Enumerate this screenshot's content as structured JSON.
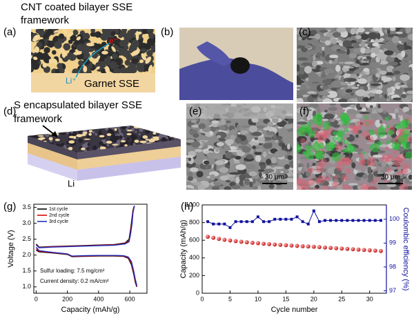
{
  "panel_labels": [
    "(a)",
    "(b)",
    "(c)",
    "(d)",
    "(e)",
    "(f)",
    "(g)",
    "(h)"
  ],
  "panel_a": {
    "title_lines": [
      "CNT coated bilayer SSE",
      "framework"
    ],
    "electron": "e⁻",
    "lithium_ion": "Li⁺",
    "layer": "Garnet  SSE"
  },
  "panel_d": {
    "title_lines": [
      "S encapsulated bilayer SSE",
      "framework"
    ],
    "anode": "Li"
  },
  "panel_e": {
    "scale_bar": "30 μm"
  },
  "panel_f": {
    "scale_bar": "30 μm"
  },
  "chart_data": [
    {
      "type": "line",
      "xlabel": "Capacity (mAh/g)",
      "ylabel": "Voltage (V)",
      "annotations": [
        "Sulfur loading: 7.5 mg/cm²",
        "Current density: 0.2 mA/cm²"
      ],
      "x": [
        0,
        20,
        100,
        200,
        230,
        300,
        400,
        500,
        560,
        590,
        610,
        625,
        635,
        645,
        0,
        0,
        20,
        100,
        300,
        500,
        570,
        595,
        605,
        615,
        620,
        625,
        630
      ],
      "series": [
        {
          "name": "1st cycle",
          "color": "#000000",
          "values": [
            2.15,
            2.1,
            2.07,
            2.02,
            1.95,
            1.96,
            1.97,
            1.97,
            1.96,
            1.9,
            1.7,
            1.4,
            1.15,
            1.0,
            null,
            2.35,
            2.25,
            2.27,
            2.3,
            2.33,
            2.38,
            2.5,
            2.8,
            3.2,
            3.4,
            3.5,
            3.55
          ]
        },
        {
          "name": "2nd cycle",
          "color": "#e00000",
          "values": [
            2.2,
            2.12,
            2.08,
            2.03,
            1.96,
            1.97,
            1.98,
            1.98,
            1.97,
            1.92,
            1.75,
            1.45,
            1.2,
            1.03,
            null,
            2.33,
            2.24,
            2.26,
            2.29,
            2.32,
            2.36,
            2.45,
            2.7,
            3.1,
            3.35,
            3.48,
            3.55
          ]
        },
        {
          "name": "3rd cycle",
          "color": "#1f2fbf",
          "values": [
            2.25,
            2.14,
            2.09,
            2.04,
            1.97,
            1.98,
            1.99,
            1.99,
            1.98,
            1.94,
            1.8,
            1.5,
            1.25,
            1.05,
            null,
            2.32,
            2.23,
            2.25,
            2.28,
            2.31,
            2.35,
            2.42,
            2.65,
            3.0,
            3.3,
            3.45,
            3.55
          ]
        }
      ],
      "xlim": [
        -15,
        710
      ],
      "xticks": [
        0,
        200,
        400,
        600
      ],
      "ylim": [
        0.8,
        3.6
      ],
      "yticks": [
        {
          "value": 1,
          "label": "1.0"
        },
        1.5,
        {
          "value": 2,
          "label": "2.0"
        },
        2.5,
        {
          "value": 3,
          "label": "3.0"
        },
        3.5
      ],
      "legend": "upper left"
    },
    {
      "type": "scatter",
      "xlabel": "Cycle number",
      "ylabel": "Capacity (mAh/g)",
      "y2label": "Coulombic efficiency (%)",
      "x": [
        1,
        2,
        3,
        4,
        5,
        6,
        7,
        8,
        9,
        10,
        11,
        12,
        13,
        14,
        15,
        16,
        17,
        18,
        19,
        20,
        21,
        22,
        23,
        24,
        25,
        26,
        27,
        28,
        29,
        30,
        31,
        32
      ],
      "series": [
        {
          "name": "Capacity",
          "color": "#e53030",
          "marker": "circle",
          "connected": false,
          "values": [
            640,
            628,
            615,
            605,
            598,
            590,
            583,
            577,
            571,
            566,
            561,
            556,
            552,
            548,
            544,
            540,
            536,
            532,
            529,
            526,
            522,
            518,
            514,
            510,
            506,
            502,
            498,
            494,
            490,
            486,
            482,
            478
          ]
        },
        {
          "name": "Coulombic efficiency",
          "color": "#1010a0",
          "marker": "square",
          "connected": true,
          "axis": "y2",
          "values": [
            99.9,
            99.8,
            99.8,
            99.8,
            99.65,
            99.9,
            99.9,
            99.9,
            99.9,
            100.1,
            99.9,
            99.9,
            100.0,
            100.0,
            100.0,
            100.0,
            100.1,
            99.9,
            99.8,
            100.35,
            99.9,
            99.95,
            99.95,
            99.95,
            99.95,
            99.95,
            99.95,
            99.95,
            99.95,
            99.95,
            99.95,
            99.95
          ]
        }
      ],
      "xlim": [
        0,
        33
      ],
      "xticks": [
        0,
        5,
        10,
        15,
        20,
        25,
        30
      ],
      "ylim": [
        0,
        1000
      ],
      "yticks": [
        0,
        200,
        400,
        600,
        800,
        1000
      ],
      "y2lim": [
        96.9,
        100.6
      ],
      "y2ticks": [
        97,
        98,
        99,
        100
      ]
    }
  ]
}
